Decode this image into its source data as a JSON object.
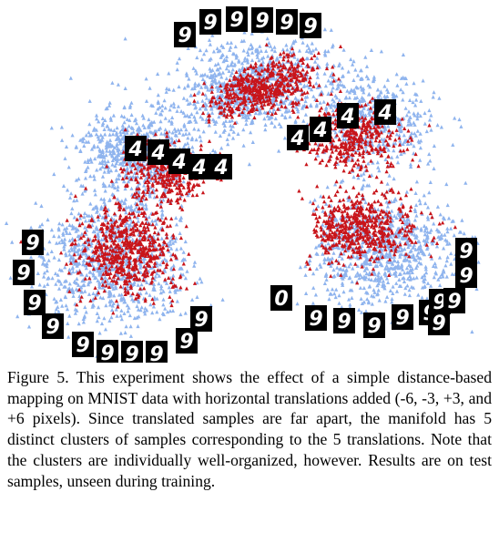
{
  "figure": {
    "colors": {
      "train_points": "#8fb4ee",
      "test_points": "#c8141a",
      "thumbnail_bg": "#000000",
      "thumbnail_digit": "#ffffff",
      "marker_circle": "#1d1d7a"
    },
    "thumbnails": [
      {
        "group": "top-arc",
        "digit": "9"
      },
      {
        "group": "top-arc",
        "digit": "9"
      },
      {
        "group": "top-arc",
        "digit": "9"
      },
      {
        "group": "top-arc",
        "digit": "9"
      },
      {
        "group": "top-arc",
        "digit": "9"
      },
      {
        "group": "top-arc",
        "digit": "9"
      },
      {
        "group": "middle-left",
        "digit": "4"
      },
      {
        "group": "middle-left",
        "digit": "4"
      },
      {
        "group": "middle-left",
        "digit": "4"
      },
      {
        "group": "middle-left",
        "digit": "4"
      },
      {
        "group": "middle-left",
        "digit": "4"
      },
      {
        "group": "middle-right",
        "digit": "4"
      },
      {
        "group": "middle-right",
        "digit": "4"
      },
      {
        "group": "middle-right",
        "digit": "4"
      },
      {
        "group": "middle-right",
        "digit": "4"
      },
      {
        "group": "left-arc",
        "digit": "9"
      },
      {
        "group": "left-arc",
        "digit": "9"
      },
      {
        "group": "left-arc",
        "digit": "9"
      },
      {
        "group": "left-arc",
        "digit": "9"
      },
      {
        "group": "left-arc",
        "digit": "9"
      },
      {
        "group": "left-arc",
        "digit": "9"
      },
      {
        "group": "left-arc",
        "digit": "9"
      },
      {
        "group": "left-arc",
        "digit": "9"
      },
      {
        "group": "left-arc",
        "digit": "9"
      },
      {
        "group": "left-arc",
        "digit": "9"
      },
      {
        "group": "left-arc",
        "digit": "0"
      },
      {
        "group": "right-arc",
        "digit": "9"
      },
      {
        "group": "right-arc",
        "digit": "9"
      },
      {
        "group": "right-arc",
        "digit": "9"
      },
      {
        "group": "right-arc",
        "digit": "9"
      },
      {
        "group": "right-arc",
        "digit": "9"
      },
      {
        "group": "right-arc",
        "digit": "9"
      },
      {
        "group": "right-arc",
        "digit": "9"
      },
      {
        "group": "right-arc",
        "digit": "9"
      },
      {
        "group": "right-arc",
        "digit": "9"
      },
      {
        "group": "right-arc",
        "digit": "9"
      }
    ]
  },
  "caption": {
    "text": "Figure 5. This experiment shows the effect of a simple distance-based mapping on MNIST data with horizontal translations added (-6, -3, +3, and +6 pixels). Since translated samples are far apart, the manifold has 5 distinct clusters of samples corresponding to the 5 translations.  Note that the clusters are individually well-organized, however.  Results are on test samples, unseen during training."
  }
}
